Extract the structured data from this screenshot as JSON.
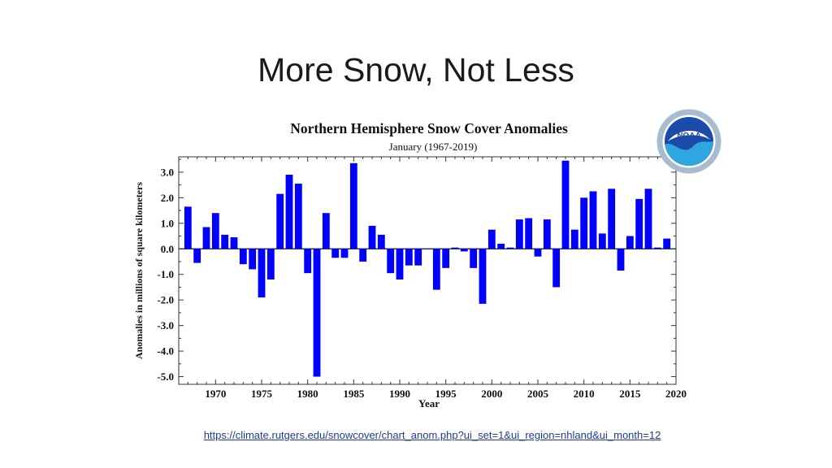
{
  "slide": {
    "title": "More Snow, Not Less",
    "source_url": "https://climate.rutgers.edu/snowcover/chart_anom.php?ui_set=1&ui_region=nhland&ui_month=12"
  },
  "logo": {
    "name": "NOAA",
    "text": "NOAA",
    "colors": {
      "outer": "#ffffff",
      "ring": "#9fb8d0",
      "sky": "#1b4aa8",
      "sea": "#2fa6df"
    }
  },
  "chart_data": {
    "type": "bar",
    "title": "Northern Hemisphere Snow Cover Anomalies",
    "subtitle": "January (1967-2019)",
    "xlabel": "Year",
    "ylabel": "Anomalies in millions of square kilometers",
    "xlim": [
      1966,
      2020
    ],
    "ylim": [
      -5.3,
      3.6
    ],
    "xticks": [
      1970,
      1975,
      1980,
      1985,
      1990,
      1995,
      2000,
      2005,
      2010,
      2015,
      2020
    ],
    "yticks": [
      3.0,
      2.0,
      1.0,
      0.0,
      -1.0,
      -2.0,
      -3.0,
      -4.0,
      -5.0
    ],
    "ytick_labels": [
      "3.0",
      "2.0",
      "1.0",
      "0.0",
      "-1.0",
      "-2.0",
      "-3.0",
      "-4.0",
      "-5.0"
    ],
    "grid": false,
    "bar_color": "#0000ff",
    "categories": [
      1967,
      1968,
      1969,
      1970,
      1971,
      1972,
      1973,
      1974,
      1975,
      1976,
      1977,
      1978,
      1979,
      1980,
      1981,
      1982,
      1983,
      1984,
      1985,
      1986,
      1987,
      1988,
      1989,
      1990,
      1991,
      1992,
      1993,
      1994,
      1995,
      1996,
      1997,
      1998,
      1999,
      2000,
      2001,
      2002,
      2003,
      2004,
      2005,
      2006,
      2007,
      2008,
      2009,
      2010,
      2011,
      2012,
      2013,
      2014,
      2015,
      2016,
      2017,
      2018,
      2019
    ],
    "values": [
      1.65,
      -0.55,
      0.85,
      1.4,
      0.55,
      0.45,
      -0.6,
      -0.8,
      -1.9,
      -1.2,
      2.15,
      2.9,
      2.55,
      -0.95,
      -5.0,
      1.4,
      -0.35,
      -0.35,
      3.35,
      -0.5,
      0.9,
      0.55,
      -0.95,
      -1.2,
      -0.65,
      -0.65,
      0.0,
      -1.6,
      -0.75,
      0.05,
      -0.1,
      -0.75,
      -2.15,
      0.75,
      0.2,
      0.05,
      1.15,
      1.2,
      -0.3,
      1.15,
      -1.5,
      3.45,
      0.75,
      2.0,
      2.25,
      0.6,
      2.35,
      -0.85,
      0.5,
      1.95,
      2.35,
      0.05,
      0.4
    ]
  }
}
